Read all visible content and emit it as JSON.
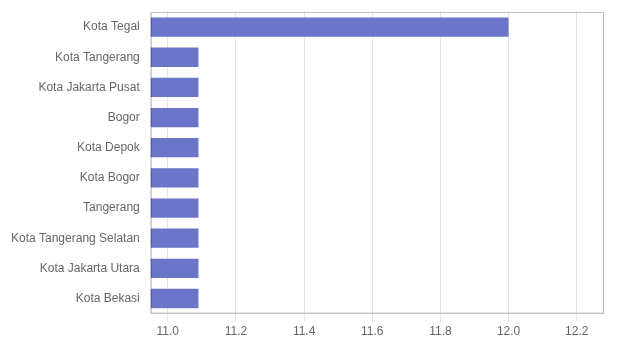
{
  "chart_data": {
    "type": "bar",
    "orientation": "horizontal",
    "categories": [
      "Kota Bekasi",
      "Kota Jakarta Utara",
      "Kota Tangerang Selatan",
      "Tangerang",
      "Kota Bogor",
      "Kota Depok",
      "Bogor",
      "Kota Jakarta Pusat",
      "Kota Tangerang",
      "Kota Tegal"
    ],
    "values": [
      11.09,
      11.09,
      11.09,
      11.09,
      11.09,
      11.09,
      11.09,
      11.09,
      11.09,
      12.0
    ],
    "color": "#6b76c8",
    "xlim": [
      10.95,
      12.28
    ],
    "xticks": [
      {
        "value": 11.0,
        "label": "11.0"
      },
      11.2,
      11.4,
      11.6,
      11.8,
      {
        "value": 12.0,
        "label": "12.0"
      },
      12.2
    ],
    "grid": true
  }
}
